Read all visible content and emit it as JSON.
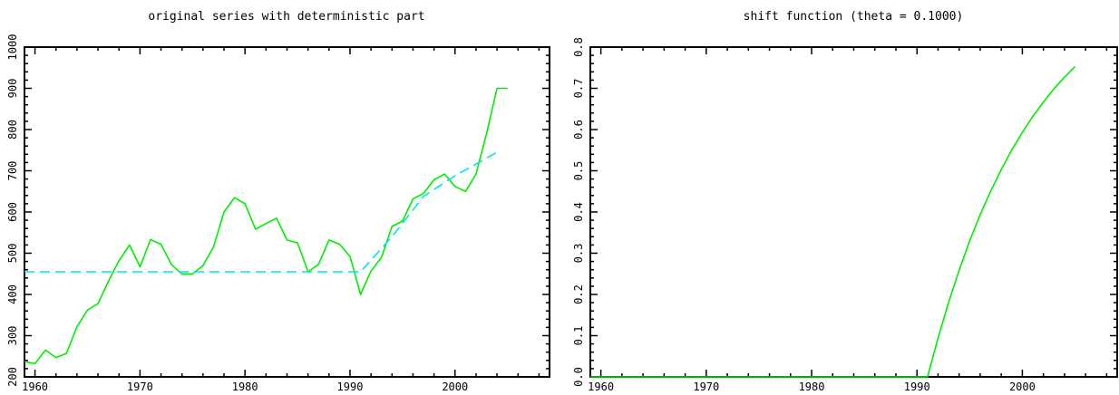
{
  "chart_data": [
    {
      "type": "line",
      "title": "original series with deterministic part",
      "xlabel": "",
      "ylabel": "",
      "xlim": [
        1959,
        2009
      ],
      "ylim": [
        200,
        1000
      ],
      "x_ticks": [
        "1960",
        "1970",
        "1980",
        "1990",
        "2000"
      ],
      "y_ticks": [
        "200",
        "300",
        "400",
        "500",
        "600",
        "700",
        "800",
        "900",
        "1000"
      ],
      "grid": false,
      "series": [
        {
          "style": "solid",
          "color": "#00ee00",
          "x": [
            1959,
            1960,
            1961,
            1962,
            1963,
            1964,
            1965,
            1966,
            1967,
            1968,
            1969,
            1970,
            1971,
            1972,
            1973,
            1974,
            1975,
            1976,
            1977,
            1978,
            1979,
            1980,
            1981,
            1982,
            1983,
            1984,
            1985,
            1986,
            1987,
            1988,
            1989,
            1990,
            1991,
            1992,
            1993,
            1994,
            1995,
            1996,
            1997,
            1998,
            1999,
            2000,
            2001,
            2002,
            2003,
            2004,
            2005
          ],
          "y": [
            237,
            232,
            265,
            247,
            257,
            322,
            362,
            378,
            432,
            482,
            520,
            467,
            533,
            522,
            472,
            450,
            450,
            470,
            515,
            600,
            635,
            620,
            558,
            572,
            585,
            532,
            525,
            455,
            473,
            532,
            522,
            492,
            400,
            457,
            490,
            565,
            578,
            632,
            645,
            678,
            692,
            662,
            650,
            692,
            790,
            900,
            900
          ]
        },
        {
          "style": "dashed",
          "color": "#00e5ee",
          "x": [
            1959,
            1991,
            1994,
            1997,
            2000,
            2004
          ],
          "y": [
            455,
            455,
            540,
            638,
            688,
            745
          ]
        }
      ]
    },
    {
      "type": "line",
      "title": "shift function (theta = 0.1000)",
      "xlabel": "",
      "ylabel": "",
      "xlim": [
        1959,
        2009
      ],
      "ylim": [
        0,
        0.8
      ],
      "x_ticks": [
        "1960",
        "1970",
        "1980",
        "1990",
        "2000"
      ],
      "y_ticks": [
        "0.0",
        "0.1",
        "0.2",
        "0.3",
        "0.4",
        "0.5",
        "0.6",
        "0.7",
        "0.8"
      ],
      "grid": false,
      "series": [
        {
          "style": "solid",
          "color": "#00ee00",
          "x": [
            1959,
            1991,
            1992,
            1993,
            1994,
            1995,
            1996,
            1997,
            1998,
            1999,
            2000,
            2001,
            2002,
            2003,
            2004,
            2005
          ],
          "y": [
            0,
            0,
            0.095,
            0.181,
            0.259,
            0.33,
            0.394,
            0.451,
            0.503,
            0.551,
            0.593,
            0.632,
            0.667,
            0.699,
            0.727,
            0.753
          ]
        }
      ]
    }
  ]
}
